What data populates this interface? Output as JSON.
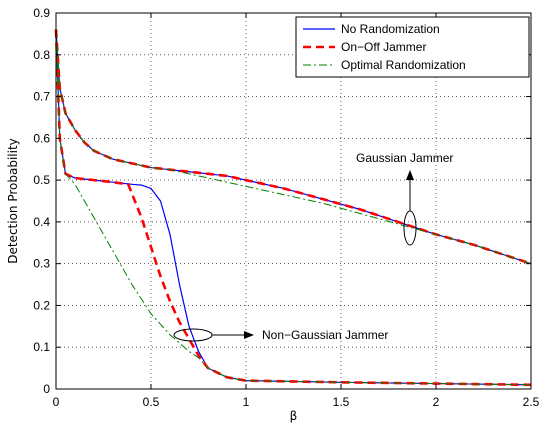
{
  "chart_data": {
    "type": "line",
    "title": "",
    "xlabel": "β",
    "ylabel": "Detection Probability",
    "xlim": [
      0,
      2.5
    ],
    "ylim": [
      0,
      0.9
    ],
    "xticks": [
      0,
      0.5,
      1,
      1.5,
      2,
      2.5
    ],
    "yticks": [
      0,
      0.1,
      0.2,
      0.3,
      0.4,
      0.5,
      0.6,
      0.7,
      0.8,
      0.9
    ],
    "xtick_labels": [
      "0",
      "0.5",
      "1",
      "1.5",
      "2",
      "2.5"
    ],
    "ytick_labels": [
      "0",
      "0.1",
      "0.2",
      "0.3",
      "0.4",
      "0.5",
      "0.6",
      "0.7",
      "0.8",
      "0.9"
    ],
    "grid": true,
    "legend_position": "top-right",
    "series": [
      {
        "name": "No Randomization",
        "color": "#0000ff",
        "style": "solid",
        "groups": [
          [
            [
              0,
              0.86
            ],
            [
              0.02,
              0.72
            ],
            [
              0.05,
              0.66
            ],
            [
              0.1,
              0.62
            ],
            [
              0.15,
              0.59
            ],
            [
              0.2,
              0.57
            ],
            [
              0.3,
              0.55
            ],
            [
              0.4,
              0.54
            ],
            [
              0.5,
              0.53
            ],
            [
              0.6,
              0.525
            ],
            [
              0.7,
              0.52
            ],
            [
              0.8,
              0.515
            ],
            [
              0.9,
              0.51
            ],
            [
              1.0,
              0.5
            ],
            [
              1.2,
              0.48
            ],
            [
              1.4,
              0.455
            ],
            [
              1.6,
              0.43
            ],
            [
              1.8,
              0.4
            ],
            [
              2.0,
              0.37
            ],
            [
              2.2,
              0.345
            ],
            [
              2.4,
              0.315
            ],
            [
              2.5,
              0.3
            ]
          ],
          [
            [
              0,
              0.86
            ],
            [
              0.02,
              0.6
            ],
            [
              0.05,
              0.515
            ],
            [
              0.1,
              0.505
            ],
            [
              0.2,
              0.5
            ],
            [
              0.3,
              0.495
            ],
            [
              0.4,
              0.49
            ],
            [
              0.45,
              0.488
            ],
            [
              0.5,
              0.48
            ],
            [
              0.55,
              0.45
            ],
            [
              0.6,
              0.37
            ],
            [
              0.65,
              0.25
            ],
            [
              0.7,
              0.15
            ],
            [
              0.75,
              0.09
            ],
            [
              0.8,
              0.05
            ],
            [
              0.9,
              0.028
            ],
            [
              1.0,
              0.02
            ],
            [
              1.5,
              0.016
            ],
            [
              2.0,
              0.013
            ],
            [
              2.5,
              0.01
            ]
          ]
        ]
      },
      {
        "name": "On−Off Jammer",
        "color": "#ff0000",
        "style": "dashed",
        "groups": [
          [
            [
              0,
              0.86
            ],
            [
              0.02,
              0.72
            ],
            [
              0.05,
              0.66
            ],
            [
              0.1,
              0.62
            ],
            [
              0.15,
              0.59
            ],
            [
              0.2,
              0.57
            ],
            [
              0.3,
              0.55
            ],
            [
              0.4,
              0.54
            ],
            [
              0.5,
              0.53
            ],
            [
              0.6,
              0.525
            ],
            [
              0.7,
              0.52
            ],
            [
              0.8,
              0.515
            ],
            [
              0.9,
              0.51
            ],
            [
              1.0,
              0.5
            ],
            [
              1.2,
              0.48
            ],
            [
              1.4,
              0.455
            ],
            [
              1.6,
              0.43
            ],
            [
              1.8,
              0.4
            ],
            [
              2.0,
              0.37
            ],
            [
              2.2,
              0.345
            ],
            [
              2.4,
              0.315
            ],
            [
              2.5,
              0.3
            ]
          ],
          [
            [
              0,
              0.86
            ],
            [
              0.02,
              0.6
            ],
            [
              0.05,
              0.515
            ],
            [
              0.1,
              0.505
            ],
            [
              0.2,
              0.5
            ],
            [
              0.3,
              0.495
            ],
            [
              0.38,
              0.49
            ],
            [
              0.45,
              0.41
            ],
            [
              0.5,
              0.34
            ],
            [
              0.55,
              0.27
            ],
            [
              0.6,
              0.21
            ],
            [
              0.65,
              0.16
            ],
            [
              0.7,
              0.12
            ],
            [
              0.75,
              0.08
            ],
            [
              0.8,
              0.05
            ],
            [
              0.9,
              0.028
            ],
            [
              1.0,
              0.02
            ],
            [
              1.5,
              0.016
            ],
            [
              2.0,
              0.013
            ],
            [
              2.5,
              0.01
            ]
          ]
        ]
      },
      {
        "name": "Optimal Randomization",
        "color": "#008000",
        "style": "dashdot",
        "groups": [
          [
            [
              0,
              0.86
            ],
            [
              0.02,
              0.72
            ],
            [
              0.05,
              0.66
            ],
            [
              0.1,
              0.62
            ],
            [
              0.15,
              0.59
            ],
            [
              0.2,
              0.57
            ],
            [
              0.3,
              0.55
            ],
            [
              0.4,
              0.54
            ],
            [
              0.5,
              0.53
            ],
            [
              0.6,
              0.525
            ],
            [
              0.7,
              0.515
            ],
            [
              0.8,
              0.505
            ],
            [
              1.0,
              0.485
            ],
            [
              1.2,
              0.465
            ],
            [
              1.4,
              0.445
            ],
            [
              1.6,
              0.42
            ],
            [
              1.8,
              0.395
            ],
            [
              2.0,
              0.37
            ],
            [
              2.2,
              0.345
            ],
            [
              2.4,
              0.315
            ],
            [
              2.5,
              0.3
            ]
          ],
          [
            [
              0,
              0.86
            ],
            [
              0.02,
              0.6
            ],
            [
              0.05,
              0.515
            ],
            [
              0.1,
              0.49
            ],
            [
              0.2,
              0.41
            ],
            [
              0.3,
              0.33
            ],
            [
              0.4,
              0.25
            ],
            [
              0.5,
              0.18
            ],
            [
              0.6,
              0.13
            ],
            [
              0.7,
              0.09
            ],
            [
              0.75,
              0.075
            ],
            [
              0.8,
              0.05
            ],
            [
              0.9,
              0.028
            ],
            [
              1.0,
              0.02
            ],
            [
              1.5,
              0.016
            ],
            [
              2.0,
              0.013
            ],
            [
              2.5,
              0.01
            ]
          ]
        ]
      }
    ],
    "annotations": [
      {
        "text": "Gaussian Jammer"
      },
      {
        "text": "Non−Gaussian Jammer"
      }
    ]
  }
}
